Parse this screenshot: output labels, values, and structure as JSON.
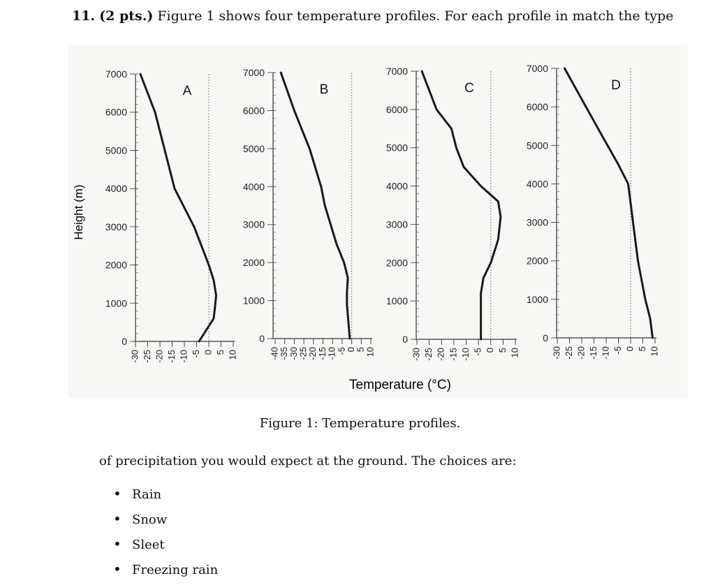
{
  "question": {
    "number": "11",
    "points": "(2 pts.)",
    "text": "Figure  1 shows four temperature profiles. For each profile in match the type"
  },
  "figure": {
    "caption": "Figure 1: Temperature profiles.",
    "ylabel": "Height (m)",
    "xlabel": "Temperature (°C)"
  },
  "continuation": "of precipitation you would expect at the ground. The choices are:",
  "choices": [
    "Rain",
    "Snow",
    "Sleet",
    "Freezing rain"
  ],
  "chart_data": [
    {
      "type": "line",
      "title": "A",
      "xlim": [
        -30,
        10
      ],
      "ylim": [
        0,
        7000
      ],
      "xticks": [
        "-30",
        "-25",
        "-20",
        "-15",
        "-10",
        "-5",
        "0",
        "5",
        "10"
      ],
      "yticks": [
        "0",
        "1000",
        "2000",
        "3000",
        "4000",
        "5000",
        "6000",
        "7000"
      ],
      "freezing_line": 0,
      "series": [
        {
          "x": [
            -28,
            -25,
            -22,
            -18,
            -14,
            -10,
            -6,
            -3,
            0,
            2,
            3,
            2.5,
            2,
            -4
          ],
          "y": [
            7000,
            6500,
            6000,
            5000,
            4000,
            3500,
            3000,
            2500,
            2000,
            1600,
            1200,
            900,
            600,
            0
          ]
        }
      ]
    },
    {
      "type": "line",
      "title": "B",
      "xlim": [
        -40,
        10
      ],
      "ylim": [
        0,
        7000
      ],
      "xticks": [
        "-40",
        "-35",
        "-30",
        "-25",
        "-20",
        "-15",
        "-10",
        "-5",
        "0",
        "5",
        "10"
      ],
      "yticks": [
        "0",
        "1000",
        "2000",
        "3000",
        "4000",
        "5000",
        "6000",
        "7000"
      ],
      "freezing_line": 0,
      "series": [
        {
          "x": [
            -37,
            -30,
            -22,
            -16,
            -14,
            -11,
            -8,
            -4,
            -2,
            -2.5,
            -2.5,
            -1
          ],
          "y": [
            7000,
            6000,
            5000,
            4000,
            3500,
            3000,
            2500,
            2000,
            1600,
            1200,
            900,
            0
          ]
        }
      ]
    },
    {
      "type": "line",
      "title": "C",
      "xlim": [
        -30,
        10
      ],
      "ylim": [
        0,
        7000
      ],
      "xticks": [
        "-30",
        "-25",
        "-20",
        "-15",
        "-10",
        "-5",
        "0",
        "5",
        "10"
      ],
      "yticks": [
        "0",
        "1000",
        "2000",
        "3000",
        "4000",
        "5000",
        "6000",
        "7000"
      ],
      "freezing_line": 0,
      "series": [
        {
          "x": [
            -28,
            -25,
            -22,
            -16,
            -14,
            -11,
            -4,
            3,
            4,
            3,
            0,
            -3,
            -4,
            -4,
            -4
          ],
          "y": [
            7000,
            6500,
            6000,
            5500,
            5000,
            4500,
            4000,
            3600,
            3200,
            2600,
            2000,
            1600,
            1200,
            800,
            0
          ]
        }
      ]
    },
    {
      "type": "line",
      "title": "D",
      "xlim": [
        -30,
        10
      ],
      "ylim": [
        0,
        7000
      ],
      "xticks": [
        "-30",
        "-25",
        "-20",
        "-15",
        "-10",
        "-5",
        "0",
        "5",
        "10"
      ],
      "yticks": [
        "0",
        "1000",
        "2000",
        "3000",
        "4000",
        "5000",
        "6000",
        "7000"
      ],
      "freezing_line": 0,
      "series": [
        {
          "x": [
            -27,
            -20,
            -13,
            -5,
            -1,
            0,
            1,
            3,
            6,
            8,
            9
          ],
          "y": [
            7000,
            6200,
            5400,
            4500,
            4000,
            3500,
            3000,
            2000,
            1000,
            500,
            0
          ]
        }
      ]
    }
  ]
}
